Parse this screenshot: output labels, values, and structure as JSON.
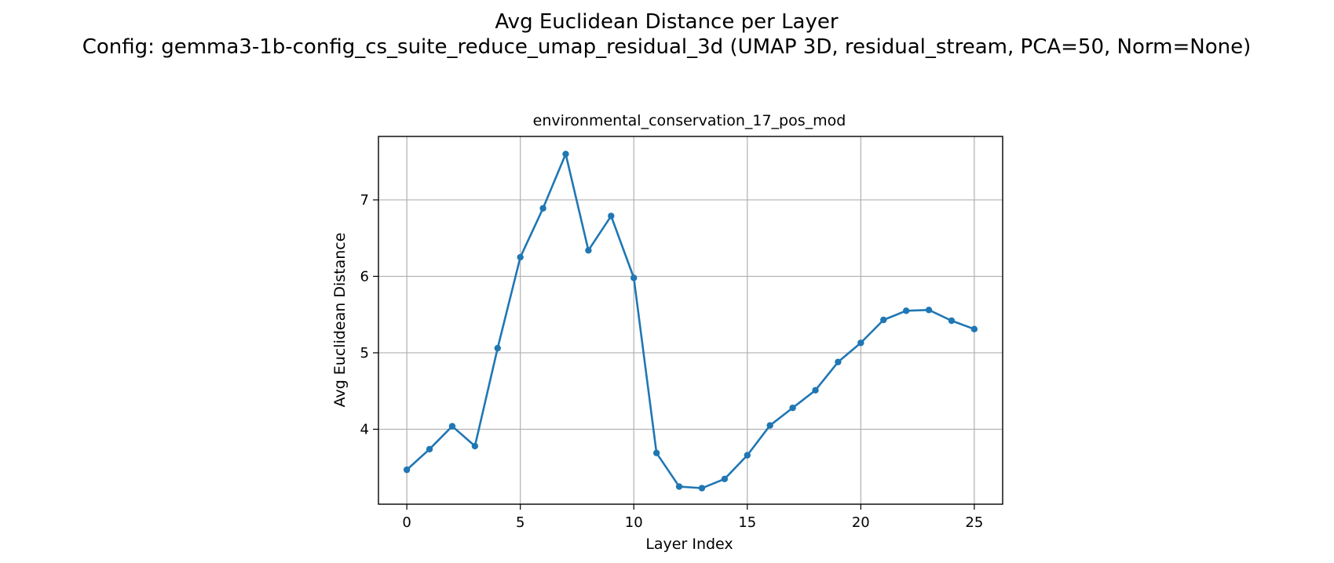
{
  "figure": {
    "suptitle_line1": "Avg Euclidean Distance per Layer",
    "suptitle_line2": "Config: gemma3-1b-config_cs_suite_reduce_umap_residual_3d (UMAP 3D, residual_stream, PCA=50, Norm=None)"
  },
  "chart_data": {
    "type": "line",
    "title": "environmental_conservation_17_pos_mod",
    "xlabel": "Layer Index",
    "ylabel": "Avg Euclidean Distance",
    "xlim": [
      -1.25,
      26.25
    ],
    "ylim": [
      3.02,
      7.83
    ],
    "xticks": [
      0,
      5,
      10,
      15,
      20,
      25
    ],
    "yticks": [
      4,
      5,
      6,
      7
    ],
    "grid": true,
    "series": [
      {
        "color": "#1f77b4",
        "marker": "circle",
        "x": [
          0,
          1,
          2,
          3,
          4,
          5,
          6,
          7,
          8,
          9,
          10,
          11,
          12,
          13,
          14,
          15,
          16,
          17,
          18,
          19,
          20,
          21,
          22,
          23,
          24,
          25
        ],
        "y": [
          3.47,
          3.74,
          4.04,
          3.78,
          5.06,
          6.25,
          6.89,
          7.6,
          6.34,
          6.79,
          5.98,
          3.69,
          3.25,
          3.23,
          3.35,
          3.66,
          4.05,
          4.28,
          4.51,
          4.88,
          5.13,
          5.43,
          5.55,
          5.56,
          5.42,
          5.31
        ]
      }
    ]
  }
}
